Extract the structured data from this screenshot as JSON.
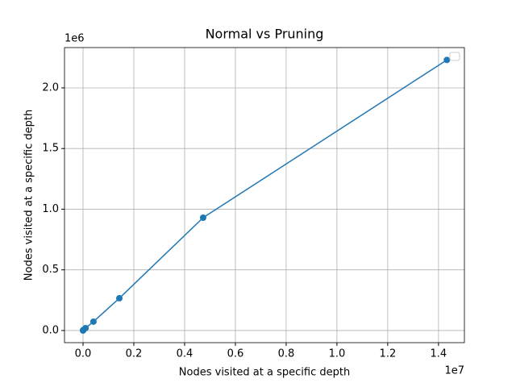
{
  "chart_data": {
    "type": "line",
    "title": "Normal vs Pruning",
    "x_label": "Nodes visited at a specific depth",
    "y_label": "Nodes visited at a specific depth",
    "x_offset_label": "1e7",
    "y_offset_label": "1e6",
    "series": [
      {
        "color": "#1f77b4",
        "x": [
          100,
          1000,
          10000,
          100000,
          410000,
          1430000,
          4730000,
          14330000
        ],
        "values": [
          100,
          1000,
          5000,
          20000,
          73000,
          266000,
          930000,
          2230000
        ]
      }
    ],
    "xlim": [
      -730000,
      15020000
    ],
    "xticks": [
      {
        "value": 0,
        "label": "0.0"
      },
      {
        "value": 2000000,
        "label": "0.2"
      },
      {
        "value": 4000000,
        "label": "0.4"
      },
      {
        "value": 6000000,
        "label": "0.6"
      },
      {
        "value": 8000000,
        "label": "0.8"
      },
      {
        "value": 10000000,
        "label": "1.0"
      },
      {
        "value": 12000000,
        "label": "1.2"
      },
      {
        "value": 14000000,
        "label": "1.4"
      }
    ],
    "ylim": [
      -100000,
      2332000
    ],
    "yticks": [
      {
        "value": 0,
        "label": "0.0"
      },
      {
        "value": 500000,
        "label": "0.5"
      },
      {
        "value": 1000000,
        "label": "1.0"
      },
      {
        "value": 1500000,
        "label": "1.5"
      },
      {
        "value": 2000000,
        "label": "2.0"
      }
    ],
    "grid": true,
    "legend": "upper right"
  }
}
